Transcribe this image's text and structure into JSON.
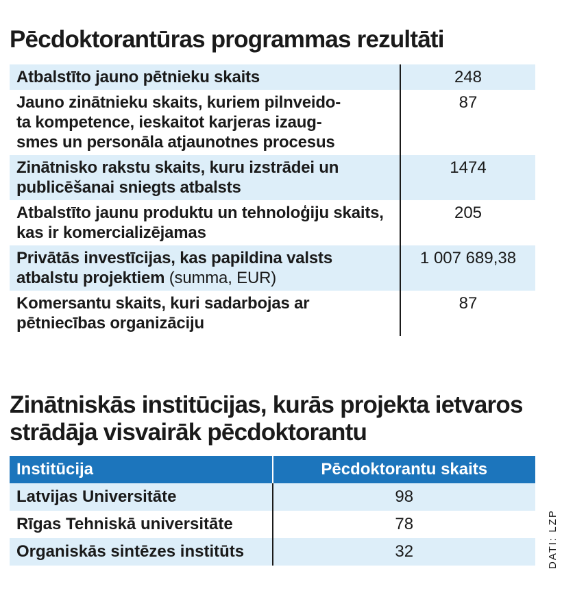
{
  "results": {
    "title": "Pēcdoktorantūras programmas rezultāti",
    "rows": [
      {
        "label": "Atbalstīto jauno pētnieku skaits",
        "unit": "",
        "value": "248"
      },
      {
        "label": "Jauno zinātnieku skaits, kuriem pilnveido-ta kompetence, ieskaitot karjeras izaug-smes un personāla atjaunotnes procesus",
        "unit": "",
        "value": "87"
      },
      {
        "label": "Zinātnisko rakstu skaits, kuru izstrādei un publicēšanai sniegts atbalsts",
        "unit": "",
        "value": "1474"
      },
      {
        "label": "Atbalstīto jaunu produktu un tehnoloģiju skaits, kas ir komercializējamas",
        "unit": "",
        "value": "205"
      },
      {
        "label": "Privātās investīcijas, kas papildina valsts atbalstu projektiem",
        "unit": "(summa, EUR)",
        "value": "1 007 689,38"
      },
      {
        "label": "Komersantu skaits, kuri sadarbojas ar pētniecības organizāciju",
        "unit": "",
        "value": "87"
      }
    ]
  },
  "institutions": {
    "title": "Zinātniskās institūcijas, kurās projekta ietvaros strādāja visvairāk pēcdoktorantu",
    "headers": {
      "institution": "Institūcija",
      "count": "Pēcdoktorantu skaits"
    },
    "rows": [
      {
        "name": "Latvijas Universitāte",
        "count": "98"
      },
      {
        "name": "Rīgas Tehniskā universitāte",
        "count": "78"
      },
      {
        "name": "Organiskās sintēzes institūts",
        "count": "32"
      }
    ]
  },
  "source": "DATI: LZP",
  "colors": {
    "header_blue": "#1c75bc",
    "row_shade": "#ddeef9"
  }
}
